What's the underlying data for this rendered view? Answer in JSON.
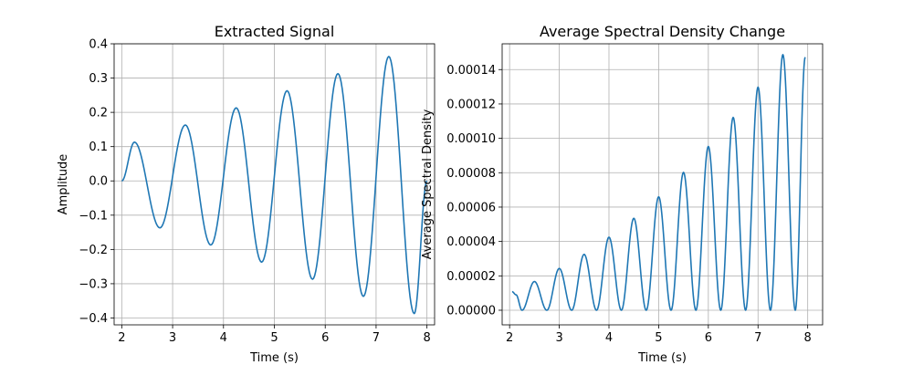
{
  "chart_data": [
    {
      "type": "line",
      "title": "Extracted Signal",
      "xlabel": "Time (s)",
      "ylabel": "Amplitude",
      "xlim": [
        1.85,
        8.15
      ],
      "ylim": [
        -0.42,
        0.4
      ],
      "xticks": [
        2,
        3,
        4,
        5,
        6,
        7,
        8
      ],
      "yticks": [
        -0.4,
        -0.3,
        -0.2,
        -0.1,
        0.0,
        0.1,
        0.2,
        0.3,
        0.4
      ],
      "xtick_labels": [
        "2",
        "3",
        "4",
        "5",
        "6",
        "7",
        "8"
      ],
      "ytick_labels": [
        "−0.4",
        "−0.3",
        "−0.2",
        "−0.1",
        "0.0",
        "0.1",
        "0.2",
        "0.3",
        "0.4"
      ],
      "grid": true,
      "color": "#1f77b4",
      "series": [
        {
          "x": [
            2.0,
            2.25,
            2.75,
            3.25,
            3.75,
            4.25,
            4.75,
            5.25,
            5.75,
            6.25,
            6.75,
            7.25,
            7.75,
            8.0
          ],
          "y": [
            0.0,
            0.113,
            -0.137,
            0.163,
            -0.187,
            0.213,
            -0.237,
            0.263,
            -0.287,
            0.313,
            -0.337,
            0.363,
            -0.387,
            0.0
          ]
        }
      ]
    },
    {
      "type": "line",
      "title": "Average Spectral Density Change",
      "xlabel": "Time (s)",
      "ylabel": "Average Spectral Density",
      "xlim": [
        1.85,
        8.3
      ],
      "ylim": [
        -8.5e-06,
        0.000155
      ],
      "xticks": [
        2,
        3,
        4,
        5,
        6,
        7,
        8
      ],
      "yticks": [
        0.0,
        2e-05,
        4e-05,
        6e-05,
        8e-05,
        0.0001,
        0.00012,
        0.00014
      ],
      "xtick_labels": [
        "2",
        "3",
        "4",
        "5",
        "6",
        "7",
        "8"
      ],
      "ytick_labels": [
        "0.00000",
        "0.00002",
        "0.00004",
        "0.00006",
        "0.00008",
        "0.00010",
        "0.00012",
        "0.00014"
      ],
      "grid": true,
      "color": "#1f77b4",
      "series": [
        {
          "x": [
            2.05,
            2.13,
            2.25,
            2.5,
            2.75,
            3.0,
            3.25,
            3.5,
            3.75,
            4.0,
            4.25,
            4.5,
            4.75,
            5.0,
            5.25,
            5.5,
            5.75,
            6.0,
            6.25,
            6.5,
            6.75,
            7.0,
            7.25,
            7.5,
            7.75,
            7.95
          ],
          "y": [
            1.08e-05,
            9e-06,
            0.0,
            1.67e-05,
            0.0,
            2.43e-05,
            0.0,
            3.25e-05,
            0.0,
            4.25e-05,
            0.0,
            5.35e-05,
            0.0,
            6.6e-05,
            0.0,
            8.02e-05,
            0.0,
            9.53e-05,
            0.0,
            0.0001122,
            0.0,
            0.0001298,
            0.0,
            0.0001487,
            0.0,
            0.0001472
          ]
        }
      ]
    }
  ]
}
